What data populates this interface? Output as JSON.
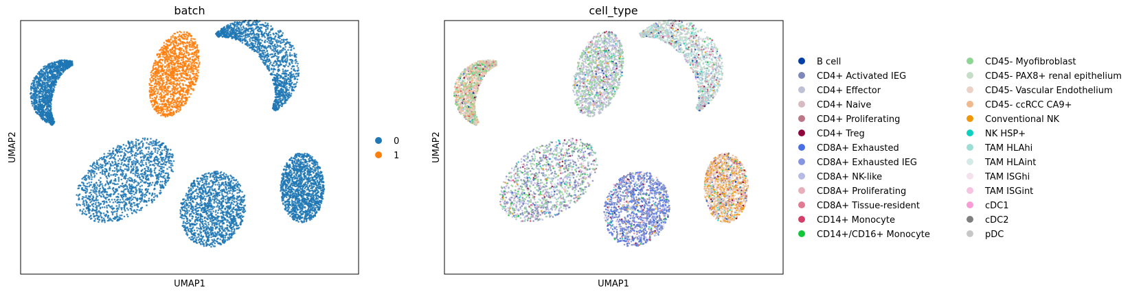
{
  "chart_data": [
    {
      "type": "scatter",
      "title": "batch",
      "xlabel": "UMAP1",
      "ylabel": "UMAP2",
      "grid": false,
      "legend_placement": "right",
      "legend": [
        {
          "label": "0",
          "color": "#1f77b4"
        },
        {
          "label": "1",
          "color": "#ff7f0e"
        }
      ],
      "clusters": [
        {
          "name": "upper-center",
          "series": "1"
        },
        {
          "name": "left-crescent",
          "series": "0"
        },
        {
          "name": "right-crescent",
          "series": "0"
        },
        {
          "name": "lower-left",
          "series": "0"
        },
        {
          "name": "lower-center",
          "series": "0"
        },
        {
          "name": "lower-right",
          "series": "0"
        }
      ]
    },
    {
      "type": "scatter",
      "title": "cell_type",
      "xlabel": "UMAP1",
      "ylabel": "UMAP2",
      "grid": false,
      "legend_placement": "right",
      "legend": [
        {
          "label": "B cell",
          "color": "#023fa5"
        },
        {
          "label": "CD4+ Activated IEG",
          "color": "#7d87b9"
        },
        {
          "label": "CD4+ Effector",
          "color": "#bec1d4"
        },
        {
          "label": "CD4+ Naive",
          "color": "#d6bcc0"
        },
        {
          "label": "CD4+ Proliferating",
          "color": "#bb7784"
        },
        {
          "label": "CD4+ Treg",
          "color": "#8e063b"
        },
        {
          "label": "CD8A+ Exhausted",
          "color": "#4a6fe3"
        },
        {
          "label": "CD8A+ Exhausted IEG",
          "color": "#8595e1"
        },
        {
          "label": "CD8A+ NK-like",
          "color": "#b5bbe3"
        },
        {
          "label": "CD8A+ Proliferating",
          "color": "#e6afb9"
        },
        {
          "label": "CD8A+ Tissue-resident",
          "color": "#e07b91"
        },
        {
          "label": "CD14+ Monocyte",
          "color": "#d33f6a"
        },
        {
          "label": "CD14+/CD16+ Monocyte",
          "color": "#11c638"
        },
        {
          "label": "CD45- Myofibroblast",
          "color": "#8dd593"
        },
        {
          "label": "CD45- PAX8+ renal epithelium",
          "color": "#c6dec7"
        },
        {
          "label": "CD45- Vascular Endothelium",
          "color": "#ead3c6"
        },
        {
          "label": "CD45- ccRCC CA9+",
          "color": "#f0b98d"
        },
        {
          "label": "Conventional NK",
          "color": "#ef9708"
        },
        {
          "label": "NK HSP+",
          "color": "#0fcfc0"
        },
        {
          "label": "TAM HLAhi",
          "color": "#9cded6"
        },
        {
          "label": "TAM HLAint",
          "color": "#d5eae7"
        },
        {
          "label": "TAM ISGhi",
          "color": "#f3e1eb"
        },
        {
          "label": "TAM ISGint",
          "color": "#f6c4e1"
        },
        {
          "label": "cDC1",
          "color": "#f79cd4"
        },
        {
          "label": "cDC2",
          "color": "#7f7f7f"
        },
        {
          "label": "pDC",
          "color": "#c7c7c7"
        }
      ],
      "clusters": [
        {
          "name": "upper-center",
          "dominant": [
            "CD8A+ NK-like",
            "CD4+ Effector",
            "CD45- Myofibroblast"
          ]
        },
        {
          "name": "left-crescent",
          "dominant": [
            "CD45- ccRCC CA9+",
            "CD45- Vascular Endothelium",
            "CD45- Myofibroblast"
          ]
        },
        {
          "name": "right-crescent",
          "dominant": [
            "TAM HLAhi",
            "CD45- PAX8+ renal epithelium",
            "CD4+ Effector"
          ]
        },
        {
          "name": "lower-left",
          "dominant": [
            "CD8A+ NK-like",
            "CD4+ Activated IEG",
            "CD45- Myofibroblast"
          ]
        },
        {
          "name": "lower-center",
          "dominant": [
            "CD8A+ Exhausted IEG",
            "CD4+ Activated IEG",
            "CD8A+ Exhausted"
          ]
        },
        {
          "name": "lower-right",
          "dominant": [
            "CD45- ccRCC CA9+",
            "Conventional NK",
            "CD45- Vascular Endothelium"
          ]
        }
      ]
    }
  ]
}
